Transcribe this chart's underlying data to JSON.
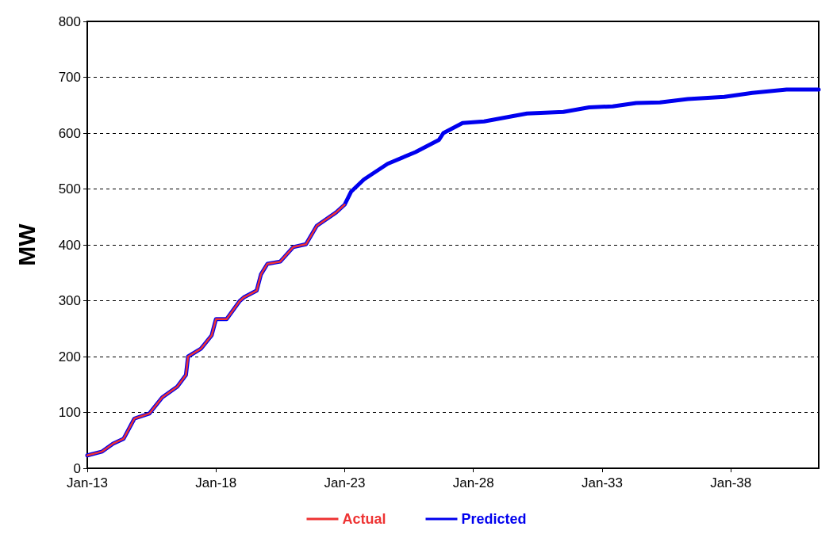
{
  "chart_data": {
    "type": "line",
    "ylabel": "MW",
    "xlim": [
      "2013-01",
      "2041-06"
    ],
    "ylim": [
      0,
      800
    ],
    "xticks": [
      {
        "value": "2013-01",
        "label": "Jan-13"
      },
      {
        "value": "2018-01",
        "label": "Jan-18"
      },
      {
        "value": "2023-01",
        "label": "Jan-23"
      },
      {
        "value": "2028-01",
        "label": "Jan-28"
      },
      {
        "value": "2033-01",
        "label": "Jan-33"
      },
      {
        "value": "2038-01",
        "label": "Jan-38"
      }
    ],
    "yticks": [
      0,
      100,
      200,
      300,
      400,
      500,
      600,
      700,
      800
    ],
    "grid": "y",
    "legend": "bottom",
    "marker": "none",
    "series": [
      {
        "name": "Actual",
        "color": "#ee3333",
        "x": [
          "2013-01",
          "2013-08",
          "2014-01",
          "2014-06",
          "2014-11",
          "2015-06",
          "2015-12",
          "2016-07",
          "2016-11",
          "2016-12",
          "2017-06",
          "2017-11",
          "2018-01",
          "2018-06",
          "2018-12",
          "2019-02",
          "2019-08",
          "2019-10",
          "2020-01",
          "2020-07",
          "2021-01",
          "2021-07",
          "2021-12",
          "2022-09",
          "2023-01"
        ],
        "values": [
          23,
          30,
          44,
          53,
          89,
          98,
          127,
          146,
          167,
          200,
          214,
          238,
          267,
          267,
          299,
          306,
          318,
          347,
          366,
          370,
          396,
          401,
          434,
          458,
          472
        ]
      },
      {
        "name": "Predicted",
        "color": "#0000ee",
        "x": [
          "2013-01",
          "2013-08",
          "2014-01",
          "2014-06",
          "2014-11",
          "2015-06",
          "2015-12",
          "2016-07",
          "2016-11",
          "2016-12",
          "2017-06",
          "2017-11",
          "2018-01",
          "2018-06",
          "2018-12",
          "2019-02",
          "2019-08",
          "2019-10",
          "2020-01",
          "2020-07",
          "2021-01",
          "2021-07",
          "2021-12",
          "2022-09",
          "2023-01",
          "2023-04",
          "2023-10",
          "2024-09",
          "2025-10",
          "2026-09",
          "2026-11",
          "2027-08",
          "2028-06",
          "2030-02",
          "2031-07",
          "2032-07",
          "2033-06",
          "2034-05",
          "2035-04",
          "2036-05",
          "2037-10",
          "2038-11",
          "2040-03",
          "2041-06"
        ],
        "values": [
          23,
          30,
          44,
          53,
          89,
          98,
          127,
          146,
          167,
          200,
          214,
          238,
          267,
          267,
          299,
          306,
          318,
          347,
          366,
          370,
          396,
          401,
          434,
          458,
          472,
          495,
          517,
          545,
          566,
          588,
          600,
          618,
          621,
          635,
          638,
          646,
          648,
          654,
          655,
          661,
          665,
          672,
          678,
          678
        ]
      }
    ]
  }
}
